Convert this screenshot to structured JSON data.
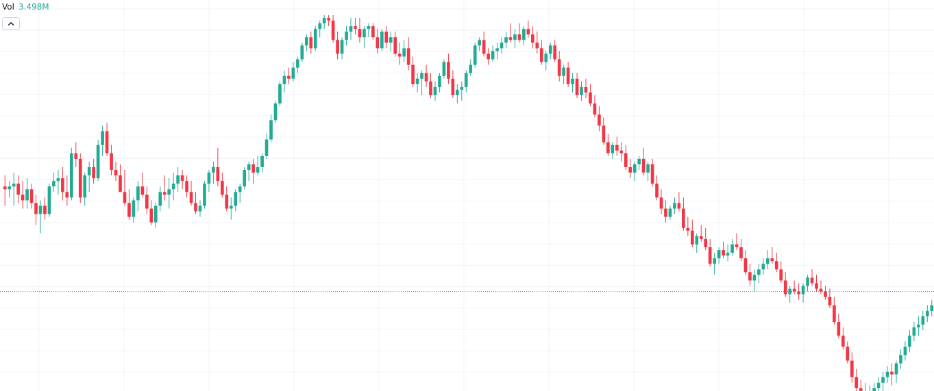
{
  "legend": {
    "label": "Vol",
    "value": "3.498M"
  },
  "toggle": {
    "icon": "chevron-up-icon"
  },
  "colors": {
    "up": "#22ab94",
    "down": "#f23645",
    "grid": "#f0f3fa",
    "price_line": "#2962ff",
    "background": "#ffffff"
  },
  "chart_data": {
    "type": "candlestick",
    "price_line": 0,
    "grid": true,
    "ylim": [
      -36,
      100
    ],
    "candles": [
      {
        "o": 38,
        "h": 42,
        "l": 31,
        "c": 37
      },
      {
        "o": 37,
        "h": 40,
        "l": 34,
        "c": 38
      },
      {
        "o": 38,
        "h": 43,
        "l": 31,
        "c": 39
      },
      {
        "o": 39,
        "h": 42,
        "l": 32,
        "c": 35
      },
      {
        "o": 35,
        "h": 40,
        "l": 30,
        "c": 33
      },
      {
        "o": 33,
        "h": 41,
        "l": 30,
        "c": 37
      },
      {
        "o": 37,
        "h": 39,
        "l": 30,
        "c": 32
      },
      {
        "o": 32,
        "h": 35,
        "l": 24,
        "c": 28
      },
      {
        "o": 28,
        "h": 33,
        "l": 21,
        "c": 31
      },
      {
        "o": 31,
        "h": 34,
        "l": 26,
        "c": 28
      },
      {
        "o": 28,
        "h": 39,
        "l": 27,
        "c": 38
      },
      {
        "o": 38,
        "h": 43,
        "l": 36,
        "c": 40
      },
      {
        "o": 40,
        "h": 44,
        "l": 35,
        "c": 41
      },
      {
        "o": 41,
        "h": 45,
        "l": 33,
        "c": 36
      },
      {
        "o": 36,
        "h": 42,
        "l": 31,
        "c": 34
      },
      {
        "o": 34,
        "h": 52,
        "l": 33,
        "c": 50
      },
      {
        "o": 50,
        "h": 54,
        "l": 45,
        "c": 48
      },
      {
        "o": 48,
        "h": 50,
        "l": 32,
        "c": 34
      },
      {
        "o": 34,
        "h": 43,
        "l": 31,
        "c": 42
      },
      {
        "o": 42,
        "h": 47,
        "l": 36,
        "c": 45
      },
      {
        "o": 45,
        "h": 48,
        "l": 39,
        "c": 41
      },
      {
        "o": 41,
        "h": 55,
        "l": 40,
        "c": 53
      },
      {
        "o": 53,
        "h": 60,
        "l": 49,
        "c": 58
      },
      {
        "o": 58,
        "h": 61,
        "l": 49,
        "c": 50
      },
      {
        "o": 50,
        "h": 53,
        "l": 42,
        "c": 44
      },
      {
        "o": 44,
        "h": 47,
        "l": 40,
        "c": 42
      },
      {
        "o": 42,
        "h": 46,
        "l": 36,
        "c": 36
      },
      {
        "o": 36,
        "h": 44,
        "l": 31,
        "c": 32
      },
      {
        "o": 32,
        "h": 37,
        "l": 26,
        "c": 27
      },
      {
        "o": 27,
        "h": 34,
        "l": 25,
        "c": 33
      },
      {
        "o": 33,
        "h": 40,
        "l": 29,
        "c": 38
      },
      {
        "o": 38,
        "h": 43,
        "l": 34,
        "c": 35
      },
      {
        "o": 35,
        "h": 38,
        "l": 28,
        "c": 30
      },
      {
        "o": 30,
        "h": 33,
        "l": 24,
        "c": 25
      },
      {
        "o": 25,
        "h": 32,
        "l": 23,
        "c": 31
      },
      {
        "o": 31,
        "h": 38,
        "l": 29,
        "c": 36
      },
      {
        "o": 36,
        "h": 42,
        "l": 33,
        "c": 35
      },
      {
        "o": 35,
        "h": 41,
        "l": 30,
        "c": 37
      },
      {
        "o": 37,
        "h": 43,
        "l": 33,
        "c": 39
      },
      {
        "o": 39,
        "h": 45,
        "l": 36,
        "c": 42
      },
      {
        "o": 42,
        "h": 44,
        "l": 37,
        "c": 40
      },
      {
        "o": 40,
        "h": 42,
        "l": 34,
        "c": 36
      },
      {
        "o": 36,
        "h": 40,
        "l": 31,
        "c": 32
      },
      {
        "o": 32,
        "h": 36,
        "l": 28,
        "c": 29
      },
      {
        "o": 29,
        "h": 33,
        "l": 27,
        "c": 31
      },
      {
        "o": 31,
        "h": 40,
        "l": 30,
        "c": 39
      },
      {
        "o": 39,
        "h": 44,
        "l": 36,
        "c": 43
      },
      {
        "o": 43,
        "h": 47,
        "l": 39,
        "c": 45
      },
      {
        "o": 45,
        "h": 52,
        "l": 38,
        "c": 40
      },
      {
        "o": 40,
        "h": 43,
        "l": 34,
        "c": 35
      },
      {
        "o": 35,
        "h": 38,
        "l": 29,
        "c": 30
      },
      {
        "o": 30,
        "h": 34,
        "l": 26,
        "c": 31
      },
      {
        "o": 31,
        "h": 37,
        "l": 29,
        "c": 36
      },
      {
        "o": 36,
        "h": 39,
        "l": 32,
        "c": 38
      },
      {
        "o": 38,
        "h": 45,
        "l": 37,
        "c": 44
      },
      {
        "o": 44,
        "h": 47,
        "l": 40,
        "c": 46
      },
      {
        "o": 46,
        "h": 48,
        "l": 39,
        "c": 43
      },
      {
        "o": 43,
        "h": 49,
        "l": 42,
        "c": 45
      },
      {
        "o": 45,
        "h": 50,
        "l": 43,
        "c": 49
      },
      {
        "o": 49,
        "h": 57,
        "l": 48,
        "c": 55
      },
      {
        "o": 55,
        "h": 64,
        "l": 54,
        "c": 62
      },
      {
        "o": 62,
        "h": 69,
        "l": 61,
        "c": 68
      },
      {
        "o": 68,
        "h": 76,
        "l": 67,
        "c": 75
      },
      {
        "o": 75,
        "h": 80,
        "l": 72,
        "c": 78
      },
      {
        "o": 78,
        "h": 81,
        "l": 75,
        "c": 77
      },
      {
        "o": 77,
        "h": 83,
        "l": 76,
        "c": 81
      },
      {
        "o": 81,
        "h": 85,
        "l": 79,
        "c": 84
      },
      {
        "o": 84,
        "h": 90,
        "l": 83,
        "c": 89
      },
      {
        "o": 89,
        "h": 93,
        "l": 87,
        "c": 92
      },
      {
        "o": 92,
        "h": 94,
        "l": 86,
        "c": 88
      },
      {
        "o": 88,
        "h": 96,
        "l": 87,
        "c": 95
      },
      {
        "o": 95,
        "h": 98,
        "l": 92,
        "c": 97
      },
      {
        "o": 97,
        "h": 100,
        "l": 95,
        "c": 99
      },
      {
        "o": 99,
        "h": 100,
        "l": 96,
        "c": 98
      },
      {
        "o": 98,
        "h": 100,
        "l": 90,
        "c": 91
      },
      {
        "o": 91,
        "h": 94,
        "l": 84,
        "c": 86
      },
      {
        "o": 86,
        "h": 92,
        "l": 84,
        "c": 91
      },
      {
        "o": 91,
        "h": 96,
        "l": 89,
        "c": 94
      },
      {
        "o": 94,
        "h": 99,
        "l": 91,
        "c": 96
      },
      {
        "o": 96,
        "h": 99,
        "l": 93,
        "c": 95
      },
      {
        "o": 95,
        "h": 99,
        "l": 90,
        "c": 92
      },
      {
        "o": 92,
        "h": 96,
        "l": 88,
        "c": 95
      },
      {
        "o": 95,
        "h": 97,
        "l": 92,
        "c": 96
      },
      {
        "o": 96,
        "h": 97,
        "l": 91,
        "c": 92
      },
      {
        "o": 92,
        "h": 95,
        "l": 86,
        "c": 88
      },
      {
        "o": 88,
        "h": 95,
        "l": 87,
        "c": 94
      },
      {
        "o": 94,
        "h": 96,
        "l": 88,
        "c": 90
      },
      {
        "o": 90,
        "h": 94,
        "l": 87,
        "c": 92
      },
      {
        "o": 92,
        "h": 94,
        "l": 85,
        "c": 86
      },
      {
        "o": 86,
        "h": 90,
        "l": 82,
        "c": 85
      },
      {
        "o": 85,
        "h": 91,
        "l": 83,
        "c": 88
      },
      {
        "o": 88,
        "h": 92,
        "l": 80,
        "c": 82
      },
      {
        "o": 82,
        "h": 85,
        "l": 74,
        "c": 75
      },
      {
        "o": 75,
        "h": 79,
        "l": 72,
        "c": 77
      },
      {
        "o": 77,
        "h": 80,
        "l": 71,
        "c": 79
      },
      {
        "o": 79,
        "h": 82,
        "l": 74,
        "c": 76
      },
      {
        "o": 76,
        "h": 79,
        "l": 70,
        "c": 71
      },
      {
        "o": 71,
        "h": 76,
        "l": 69,
        "c": 74
      },
      {
        "o": 74,
        "h": 79,
        "l": 72,
        "c": 78
      },
      {
        "o": 78,
        "h": 84,
        "l": 77,
        "c": 83
      },
      {
        "o": 83,
        "h": 86,
        "l": 75,
        "c": 77
      },
      {
        "o": 77,
        "h": 80,
        "l": 70,
        "c": 71
      },
      {
        "o": 71,
        "h": 75,
        "l": 68,
        "c": 73
      },
      {
        "o": 73,
        "h": 76,
        "l": 69,
        "c": 74
      },
      {
        "o": 74,
        "h": 80,
        "l": 72,
        "c": 79
      },
      {
        "o": 79,
        "h": 84,
        "l": 78,
        "c": 82
      },
      {
        "o": 82,
        "h": 90,
        "l": 81,
        "c": 89
      },
      {
        "o": 89,
        "h": 92,
        "l": 87,
        "c": 91
      },
      {
        "o": 91,
        "h": 94,
        "l": 85,
        "c": 86
      },
      {
        "o": 86,
        "h": 88,
        "l": 82,
        "c": 84
      },
      {
        "o": 84,
        "h": 89,
        "l": 83,
        "c": 87
      },
      {
        "o": 87,
        "h": 90,
        "l": 84,
        "c": 88
      },
      {
        "o": 88,
        "h": 92,
        "l": 86,
        "c": 90
      },
      {
        "o": 90,
        "h": 94,
        "l": 88,
        "c": 92
      },
      {
        "o": 92,
        "h": 97,
        "l": 90,
        "c": 91
      },
      {
        "o": 91,
        "h": 95,
        "l": 88,
        "c": 93
      },
      {
        "o": 93,
        "h": 97,
        "l": 90,
        "c": 91
      },
      {
        "o": 91,
        "h": 96,
        "l": 89,
        "c": 95
      },
      {
        "o": 95,
        "h": 98,
        "l": 92,
        "c": 93
      },
      {
        "o": 93,
        "h": 96,
        "l": 88,
        "c": 90
      },
      {
        "o": 90,
        "h": 94,
        "l": 86,
        "c": 88
      },
      {
        "o": 88,
        "h": 91,
        "l": 82,
        "c": 83
      },
      {
        "o": 83,
        "h": 87,
        "l": 80,
        "c": 86
      },
      {
        "o": 86,
        "h": 90,
        "l": 84,
        "c": 89
      },
      {
        "o": 89,
        "h": 91,
        "l": 83,
        "c": 84
      },
      {
        "o": 84,
        "h": 87,
        "l": 76,
        "c": 78
      },
      {
        "o": 78,
        "h": 82,
        "l": 75,
        "c": 81
      },
      {
        "o": 81,
        "h": 83,
        "l": 74,
        "c": 75
      },
      {
        "o": 75,
        "h": 79,
        "l": 72,
        "c": 77
      },
      {
        "o": 77,
        "h": 79,
        "l": 70,
        "c": 71
      },
      {
        "o": 71,
        "h": 76,
        "l": 69,
        "c": 74
      },
      {
        "o": 74,
        "h": 77,
        "l": 70,
        "c": 72
      },
      {
        "o": 72,
        "h": 75,
        "l": 67,
        "c": 68
      },
      {
        "o": 68,
        "h": 71,
        "l": 63,
        "c": 64
      },
      {
        "o": 64,
        "h": 67,
        "l": 58,
        "c": 60
      },
      {
        "o": 60,
        "h": 63,
        "l": 53,
        "c": 54
      },
      {
        "o": 54,
        "h": 57,
        "l": 49,
        "c": 50
      },
      {
        "o": 50,
        "h": 54,
        "l": 48,
        "c": 53
      },
      {
        "o": 53,
        "h": 56,
        "l": 49,
        "c": 51
      },
      {
        "o": 51,
        "h": 54,
        "l": 47,
        "c": 50
      },
      {
        "o": 50,
        "h": 53,
        "l": 44,
        "c": 45
      },
      {
        "o": 45,
        "h": 48,
        "l": 41,
        "c": 43
      },
      {
        "o": 43,
        "h": 47,
        "l": 40,
        "c": 46
      },
      {
        "o": 46,
        "h": 49,
        "l": 44,
        "c": 48
      },
      {
        "o": 48,
        "h": 52,
        "l": 42,
        "c": 43
      },
      {
        "o": 43,
        "h": 47,
        "l": 40,
        "c": 46
      },
      {
        "o": 46,
        "h": 48,
        "l": 38,
        "c": 39
      },
      {
        "o": 39,
        "h": 42,
        "l": 33,
        "c": 34
      },
      {
        "o": 34,
        "h": 37,
        "l": 28,
        "c": 30
      },
      {
        "o": 30,
        "h": 33,
        "l": 25,
        "c": 27
      },
      {
        "o": 27,
        "h": 31,
        "l": 26,
        "c": 30
      },
      {
        "o": 30,
        "h": 34,
        "l": 28,
        "c": 32
      },
      {
        "o": 32,
        "h": 36,
        "l": 29,
        "c": 30
      },
      {
        "o": 30,
        "h": 34,
        "l": 22,
        "c": 23
      },
      {
        "o": 23,
        "h": 27,
        "l": 20,
        "c": 22
      },
      {
        "o": 22,
        "h": 26,
        "l": 16,
        "c": 17
      },
      {
        "o": 17,
        "h": 21,
        "l": 14,
        "c": 20
      },
      {
        "o": 20,
        "h": 24,
        "l": 18,
        "c": 19
      },
      {
        "o": 19,
        "h": 23,
        "l": 15,
        "c": 16
      },
      {
        "o": 16,
        "h": 19,
        "l": 9,
        "c": 10
      },
      {
        "o": 10,
        "h": 14,
        "l": 6,
        "c": 12
      },
      {
        "o": 12,
        "h": 16,
        "l": 10,
        "c": 15
      },
      {
        "o": 15,
        "h": 18,
        "l": 12,
        "c": 13
      },
      {
        "o": 13,
        "h": 17,
        "l": 11,
        "c": 14
      },
      {
        "o": 14,
        "h": 19,
        "l": 13,
        "c": 17
      },
      {
        "o": 17,
        "h": 21,
        "l": 15,
        "c": 16
      },
      {
        "o": 16,
        "h": 19,
        "l": 11,
        "c": 12
      },
      {
        "o": 12,
        "h": 15,
        "l": 6,
        "c": 7
      },
      {
        "o": 7,
        "h": 10,
        "l": 2,
        "c": 4
      },
      {
        "o": 4,
        "h": 8,
        "l": 0,
        "c": 6
      },
      {
        "o": 6,
        "h": 10,
        "l": 3,
        "c": 8
      },
      {
        "o": 8,
        "h": 12,
        "l": 6,
        "c": 10
      },
      {
        "o": 10,
        "h": 15,
        "l": 8,
        "c": 12
      },
      {
        "o": 12,
        "h": 16,
        "l": 10,
        "c": 11
      },
      {
        "o": 11,
        "h": 14,
        "l": 7,
        "c": 8
      },
      {
        "o": 8,
        "h": 11,
        "l": 3,
        "c": 4
      },
      {
        "o": 4,
        "h": 7,
        "l": -2,
        "c": -1
      },
      {
        "o": -1,
        "h": 2,
        "l": -4,
        "c": 1
      },
      {
        "o": 1,
        "h": 4,
        "l": -1,
        "c": 0
      },
      {
        "o": 0,
        "h": 3,
        "l": -3,
        "c": -1
      },
      {
        "o": -1,
        "h": 3,
        "l": -4,
        "c": 2
      },
      {
        "o": 2,
        "h": 6,
        "l": 0,
        "c": 5
      },
      {
        "o": 5,
        "h": 8,
        "l": 2,
        "c": 3
      },
      {
        "o": 3,
        "h": 6,
        "l": 0,
        "c": 1
      },
      {
        "o": 1,
        "h": 4,
        "l": -1,
        "c": 0
      },
      {
        "o": 0,
        "h": 2,
        "l": -3,
        "c": -2
      },
      {
        "o": -2,
        "h": 1,
        "l": -6,
        "c": -5
      },
      {
        "o": -5,
        "h": -2,
        "l": -12,
        "c": -11
      },
      {
        "o": -11,
        "h": -8,
        "l": -17,
        "c": -16
      },
      {
        "o": -16,
        "h": -13,
        "l": -21,
        "c": -20
      },
      {
        "o": -20,
        "h": -18,
        "l": -26,
        "c": -25
      },
      {
        "o": -25,
        "h": -22,
        "l": -33,
        "c": -31
      },
      {
        "o": -31,
        "h": -28,
        "l": -36,
        "c": -35
      },
      {
        "o": -35,
        "h": -32,
        "l": -36,
        "c": -36
      },
      {
        "o": -36,
        "h": -33,
        "l": -36,
        "c": -36
      },
      {
        "o": -36,
        "h": -34,
        "l": -36,
        "c": -36
      },
      {
        "o": -36,
        "h": -33,
        "l": -36,
        "c": -35
      },
      {
        "o": -35,
        "h": -31,
        "l": -36,
        "c": -33
      },
      {
        "o": -33,
        "h": -29,
        "l": -36,
        "c": -31
      },
      {
        "o": -31,
        "h": -27,
        "l": -33,
        "c": -29
      },
      {
        "o": -29,
        "h": -26,
        "l": -34,
        "c": -30
      },
      {
        "o": -30,
        "h": -25,
        "l": -33,
        "c": -26
      },
      {
        "o": -26,
        "h": -21,
        "l": -28,
        "c": -23
      },
      {
        "o": -23,
        "h": -18,
        "l": -25,
        "c": -20
      },
      {
        "o": -20,
        "h": -14,
        "l": -22,
        "c": -16
      },
      {
        "o": -16,
        "h": -11,
        "l": -18,
        "c": -13
      },
      {
        "o": -13,
        "h": -9,
        "l": -16,
        "c": -12
      },
      {
        "o": -12,
        "h": -7,
        "l": -14,
        "c": -9
      },
      {
        "o": -9,
        "h": -5,
        "l": -11,
        "c": -7
      },
      {
        "o": -7,
        "h": -3,
        "l": -9,
        "c": -5
      }
    ]
  }
}
